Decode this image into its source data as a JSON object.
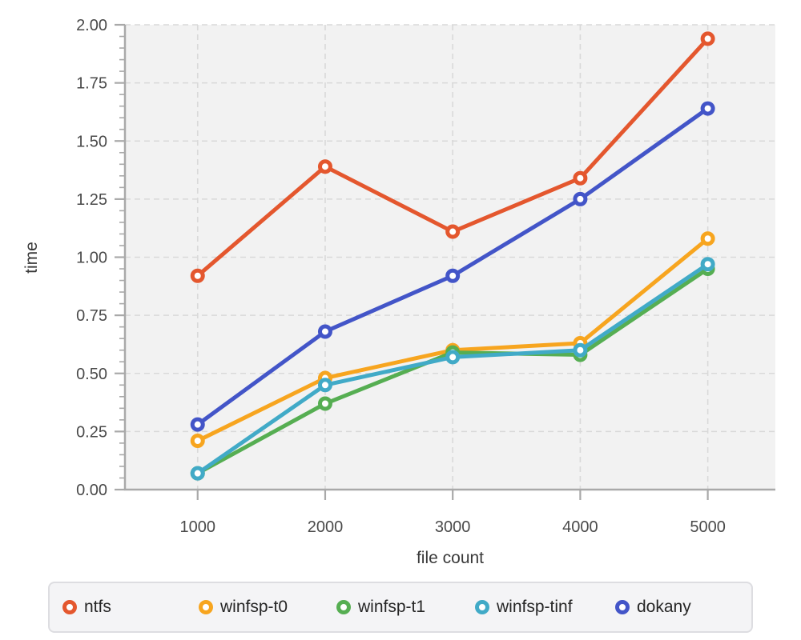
{
  "chart_data": {
    "type": "line",
    "title": "",
    "xlabel": "file count",
    "ylabel": "time",
    "x": [
      1000,
      2000,
      3000,
      4000,
      5000
    ],
    "xtick_labels": [
      "1000",
      "2000",
      "3000",
      "4000",
      "5000"
    ],
    "yticks": [
      0,
      0.25,
      0.5,
      0.75,
      1,
      1.25,
      1.5,
      1.75,
      2
    ],
    "ytick_labels": [
      "0.00",
      "0.25",
      "0.50",
      "0.75",
      "1.00",
      "1.25",
      "1.50",
      "1.75",
      "2.00"
    ],
    "ylim": [
      0,
      2
    ],
    "xlim": [
      430,
      5530
    ],
    "grid": "dashed-major-both",
    "legend_position": "bottom",
    "marker": "open-circle",
    "series": [
      {
        "name": "ntfs",
        "color": "#E4572E",
        "values": [
          0.92,
          1.39,
          1.11,
          1.34,
          1.94
        ]
      },
      {
        "name": "winfsp-t0",
        "color": "#F7A51F",
        "values": [
          0.21,
          0.48,
          0.6,
          0.63,
          1.08
        ]
      },
      {
        "name": "winfsp-t1",
        "color": "#56AE52",
        "values": [
          0.07,
          0.37,
          0.59,
          0.58,
          0.95
        ]
      },
      {
        "name": "winfsp-tinf",
        "color": "#41AAC7",
        "values": [
          0.07,
          0.45,
          0.57,
          0.6,
          0.97
        ]
      },
      {
        "name": "dokany",
        "color": "#4355C8",
        "values": [
          0.28,
          0.68,
          0.92,
          1.25,
          1.64
        ]
      }
    ],
    "colors": {
      "page_bg": "#ffffff",
      "plot_bg": "#f2f2f2",
      "grid": "#d9d9d9",
      "spine": "#a9a9a9",
      "tick": "#a9a9a9",
      "tick_label": "#4a4a4a",
      "axis_label": "#3a3a3a",
      "marker_fill": "#ffffff",
      "legend_bg": "#f4f4f6",
      "legend_border": "#dddde1",
      "legend_text": "#262626"
    }
  }
}
